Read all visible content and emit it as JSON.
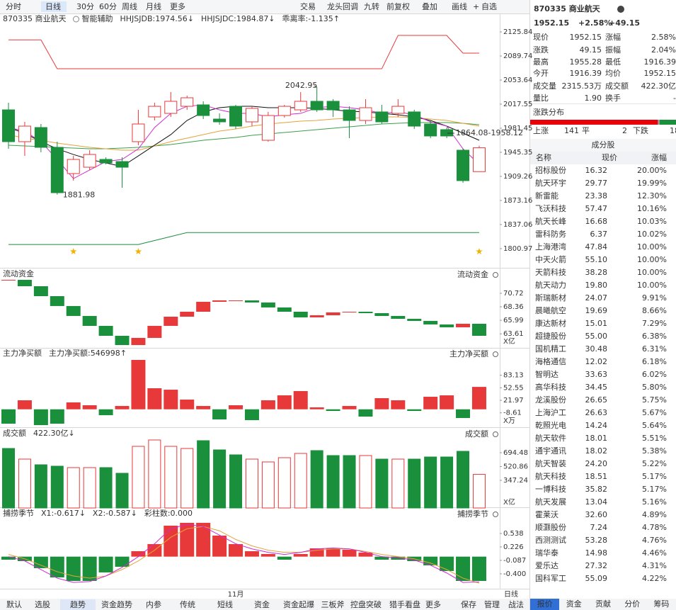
{
  "toolbar": {
    "left": [
      "分时",
      "日线",
      "30分",
      "60分",
      "周线",
      "月线",
      "更多"
    ],
    "active": 1,
    "right": [
      "交易",
      "龙头回调",
      "九转",
      "前复权",
      "叠加",
      "画线",
      "自选"
    ]
  },
  "chart_data": [
    {
      "type": "candlestick",
      "title": "870335 商业航天",
      "subtitle": "智能辅助",
      "legend": [
        {
          "text": "HHJSJDB:1974.56↓",
          "color": "#e6a23c"
        },
        {
          "text": "HHJSJDC:1984.87↓",
          "color": "#e8393a"
        },
        {
          "text": "乖离率:-1.135↑",
          "color": "#d4a000"
        }
      ],
      "open": [
        2009.0,
        1961.3,
        1982.5,
        1952.8,
        1913.5,
        1923.0,
        1934.7,
        1931.5,
        1961.3,
        1998.4,
        2003.7,
        2014.3,
        2016.5,
        1995.2,
        2014.3,
        1991.0,
        1963.4,
        2000.5,
        2009.0,
        2021.8,
        2021.8,
        2009.0,
        1993.1,
        2005.9,
        2003.7,
        2005.9,
        1987.8,
        1979.3,
        1948.5,
        1916.39
      ],
      "high": [
        2019.7,
        1991.0,
        1987.8,
        1961.3,
        1940.0,
        1948.5,
        1937.9,
        1937.9,
        2009.0,
        2019.7,
        2035.6,
        2030.3,
        2021.8,
        2003.7,
        2016.5,
        2014.3,
        2005.9,
        2016.5,
        2035.6,
        2042.95,
        2025.0,
        2014.3,
        2025.0,
        2016.5,
        2025.0,
        2009.0,
        1993.1,
        1982.5,
        1951.0,
        1955.28
      ],
      "low": [
        1950.6,
        1940.0,
        1945.3,
        1881.98,
        1902.9,
        1918.8,
        1927.3,
        1892.2,
        1956.0,
        1993.1,
        1998.4,
        2009.0,
        1995.2,
        1986.7,
        1980.4,
        1984.6,
        1961.3,
        1997.4,
        2005.9,
        2005.9,
        1998.4,
        1966.6,
        1987.8,
        1987.8,
        1998.4,
        1980.4,
        1966.6,
        1966.6,
        1899.7,
        1916.39
      ],
      "close": [
        1961.3,
        1984.6,
        1952.8,
        1884.8,
        1934.7,
        1942.1,
        1929.4,
        1923.0,
        1987.8,
        2014.3,
        2021.8,
        2027.1,
        2000.5,
        1991.0,
        1984.6,
        2011.2,
        2000.5,
        2014.3,
        2021.8,
        2009.0,
        2009.0,
        1993.1,
        2012.2,
        1991.0,
        2014.3,
        1984.6,
        1969.8,
        1969.8,
        1902.9,
        1952.15
      ],
      "lines": [
        {
          "color": "#e8393a",
          "values": [
            2113.9,
            2113.9,
            2113.9,
            2070.6,
            2070.6,
            2070.6,
            2070.6,
            2070.6,
            2070.6,
            2070.6,
            2070.6,
            2070.6,
            2070.6,
            2070.6,
            2070.6,
            2070.6,
            2070.6,
            2070.6,
            2070.6,
            2070.6,
            2070.6,
            2070.6,
            2070.6,
            2070.6,
            2120.5,
            2120.5,
            2120.5,
            2120.5,
            2094.0,
            2094.0
          ]
        },
        {
          "color": "#1a8f3c",
          "values": [
            1807.1,
            1807.1,
            1807.1,
            1807.1,
            1807.1,
            1807.1,
            1807.1,
            1807.1,
            1807.1,
            1813.1,
            1819.1,
            1825.1,
            1825.1,
            1825.1,
            1825.1,
            1825.1,
            1825.1,
            1825.1,
            1825.1,
            1825.1,
            1825.1,
            1825.1,
            1825.1,
            1825.1,
            1825.1,
            1825.1,
            1825.1,
            1825.1,
            1825.1,
            1825.1
          ]
        },
        {
          "color": "#3aa04a",
          "values": [
            1956.0,
            1954.9,
            1953.9,
            1952.8,
            1951.7,
            1950.6,
            1950.6,
            1951.7,
            1952.8,
            1954.9,
            1957.0,
            1960.2,
            1963.4,
            1965.5,
            1967.6,
            1970.8,
            1972.9,
            1975.1,
            1977.2,
            1979.3,
            1981.4,
            1983.6,
            1985.7,
            1987.8,
            1988.9,
            1989.9,
            1989.9,
            1989.9,
            1988.9,
            1986.7
          ]
        },
        {
          "color": "#e6a23c",
          "values": [
            1971.9,
            1966.6,
            1963.4,
            1959.1,
            1956.0,
            1952.8,
            1950.6,
            1948.5,
            1948.5,
            1954.9,
            1961.3,
            1966.6,
            1971.9,
            1977.2,
            1980.4,
            1984.6,
            1987.8,
            1989.9,
            1992.1,
            1993.1,
            1995.2,
            1996.3,
            1997.4,
            1998.4,
            1998.4,
            1997.4,
            1995.2,
            1993.1,
            1988.9,
            1984.6
          ]
        },
        {
          "color": "#111111",
          "values": [
            1982.5,
            1974.0,
            1961.3,
            1950.6,
            1942.1,
            1934.7,
            1929.4,
            1924.1,
            1940.0,
            1956.0,
            1971.9,
            1993.1,
            2005.9,
            2012.2,
            2014.3,
            2014.3,
            2012.2,
            2012.2,
            2012.2,
            2011.2,
            2009.0,
            2006.9,
            2005.9,
            2003.7,
            2001.6,
            1998.4,
            1993.1,
            1984.6,
            1974.0,
            1963.4
          ]
        },
        {
          "color": "#d02cd0",
          "values": [
            1982.5,
            1977.2,
            1961.3,
            1934.7,
            1906.0,
            1918.8,
            1931.5,
            1934.7,
            1950.6,
            1982.5,
            2003.7,
            2014.3,
            2016.5,
            2009.0,
            2003.7,
            2003.7,
            1998.4,
            2001.6,
            2003.7,
            2012.2,
            2014.3,
            2012.2,
            2009.0,
            2003.7,
            2005.9,
            2001.6,
            1991.0,
            1984.6,
            1950.6,
            1927.3
          ]
        }
      ],
      "stars": [
        4,
        8,
        29
      ],
      "annotations": [
        "2042.95",
        "1881.98",
        "1864.08-1958.12"
      ],
      "ylim": [
        1778.6,
        2133.3
      ],
      "yticks": [
        2125.84,
        2089.74,
        2053.64,
        2017.55,
        1981.45,
        1945.35,
        1909.26,
        1873.16,
        1837.06,
        1800.97
      ],
      "up_color": "#e8393a",
      "down_color": "#1a8f3c"
    },
    {
      "type": "waterfall",
      "title": "流动资金",
      "title_right": "流动资金",
      "unit": "X亿",
      "values": [
        73.08,
        71.96,
        70.22,
        68.49,
        66.75,
        65.01,
        63.27,
        61.65,
        62.9,
        65.01,
        66.62,
        67.49,
        69.23,
        69.48,
        69.48,
        69.11,
        68.24,
        67.49,
        66.5,
        66.87,
        67.37,
        67.49,
        67.24,
        66.75,
        66.25,
        65.88,
        65.26,
        64.76,
        65.38,
        63.27
      ],
      "ylim": [
        61.28,
        73.45
      ],
      "yticks": [
        70.72,
        68.36,
        65.99,
        63.61
      ]
    },
    {
      "type": "bar",
      "title": "主力净买额",
      "legend": [
        {
          "text": "主力净买额:546998↑",
          "color": "#e8393a"
        }
      ],
      "title_right": "主力净买额",
      "unit": "X万",
      "values": [
        -35.1,
        22.0,
        -38.6,
        -35.1,
        16.8,
        9.9,
        -14.4,
        8.1,
        120.6,
        51.4,
        47.9,
        23.7,
        8.1,
        -24.7,
        9.9,
        -26.5,
        22.0,
        34.1,
        44.5,
        4.7,
        -4.0,
        8.1,
        -17.8,
        27.2,
        22.0,
        -4.0,
        30.6,
        34.1,
        -21.3,
        54.7
      ],
      "ylim": [
        -42.0,
        125.8
      ],
      "yticks": [
        83.13,
        52.55,
        21.97,
        -8.61
      ]
    },
    {
      "type": "volume",
      "title": "成交额",
      "legend": [
        {
          "text": "422.30亿↓",
          "color": "#333333"
        }
      ],
      "title_right": "成交额",
      "unit": "X亿",
      "values": [
        747.6,
        614.1,
        542.9,
        525.1,
        507.3,
        507.3,
        507.3,
        436.1,
        774.3,
        854.4,
        774.3,
        747.6,
        845.5,
        729.8,
        667.5,
        614.1,
        578.5,
        631.9,
        685.3,
        720.9,
        658.6,
        658.6,
        658.6,
        614.1,
        614.1,
        614.1,
        640.8,
        640.8,
        712.0,
        422.3
      ],
      "ylim": [
        0,
        979
      ],
      "yticks": [
        694.48,
        520.86,
        347.24
      ]
    },
    {
      "type": "bar",
      "title": "捕捞季节",
      "legend": [
        {
          "text": "X1:-0.617↓",
          "color": "#d4a000"
        },
        {
          "text": "X2:-0.587↓",
          "color": "#d02cd0"
        },
        {
          "text": "彩柱数:0.000",
          "color": "#1a8f3c"
        }
      ],
      "title_right": "捕捞季节",
      "values": [
        -0.071,
        -0.104,
        -0.268,
        -0.483,
        -0.565,
        -0.565,
        -0.367,
        -0.236,
        0.127,
        0.292,
        0.72,
        0.786,
        0.786,
        0.489,
        0.292,
        0.127,
        0.061,
        -0.071,
        0.061,
        0.193,
        0.193,
        0.16,
        0.094,
        -0.071,
        -0.071,
        -0.104,
        -0.203,
        -0.334,
        -0.565,
        -0.565
      ],
      "lines": [
        {
          "color": "#e6a23c",
          "values": [
            0.05,
            -0.05,
            -0.2,
            -0.35,
            -0.45,
            -0.5,
            -0.45,
            -0.3,
            -0.1,
            0.15,
            0.45,
            0.65,
            0.7,
            0.6,
            0.4,
            0.25,
            0.15,
            0.1,
            0.1,
            0.15,
            0.18,
            0.18,
            0.12,
            0.05,
            0,
            -0.05,
            -0.15,
            -0.3,
            -0.5,
            -0.617
          ]
        },
        {
          "color": "#d02cd0",
          "values": [
            0.0,
            -0.1,
            -0.3,
            -0.5,
            -0.6,
            -0.58,
            -0.45,
            -0.25,
            0.0,
            0.3,
            0.65,
            0.75,
            0.7,
            0.5,
            0.3,
            0.18,
            0.1,
            0.05,
            0.1,
            0.18,
            0.2,
            0.18,
            0.1,
            0.0,
            -0.03,
            -0.08,
            -0.2,
            -0.38,
            -0.6,
            -0.587
          ]
        }
      ],
      "ylim": [
        -0.73,
        0.884
      ],
      "yticks": [
        0.538,
        0.226,
        -0.087,
        {
          "value": -0.4,
          "label": "-0.400"
        }
      ],
      "categories": [
        null,
        null,
        null,
        null,
        null,
        null,
        null,
        null,
        null,
        null,
        null,
        null,
        null,
        null,
        "11月",
        null,
        null,
        null,
        null,
        null,
        null,
        null,
        null,
        null,
        null,
        null,
        null,
        null,
        null,
        null
      ],
      "x_right_label": "日线"
    }
  ],
  "bottom_tabs": {
    "items": [
      "默认",
      "选股",
      "趋势",
      "资金趋势",
      "内参",
      "传统",
      "短线",
      "资金",
      "资金起爆",
      "三板斧",
      "控盘突破",
      "猎手看盘",
      "更多"
    ],
    "active": 2,
    "right": [
      "保存",
      "管理",
      "战法"
    ]
  },
  "quote": {
    "header": {
      "code_name": "870335 商业航天",
      "price": "1952.15",
      "change_pct": "+2.58%",
      "change": "+49.15"
    },
    "rows": [
      [
        {
          "label": "现价",
          "value": "1952.15",
          "red": true
        },
        {
          "label": "涨幅",
          "value": "2.58%",
          "red": true
        }
      ],
      [
        {
          "label": "涨跌",
          "value": "49.15",
          "red": true
        },
        {
          "label": "振幅",
          "value": "2.04%",
          "red": false
        }
      ],
      [
        {
          "label": "最高",
          "value": "1955.28",
          "red": true
        },
        {
          "label": "最低",
          "value": "1916.39",
          "red": true
        }
      ],
      [
        {
          "label": "今开",
          "value": "1916.39",
          "red": true
        },
        {
          "label": "均价",
          "value": "1952.15",
          "red": true
        }
      ],
      [
        {
          "label": "成交量",
          "value": "2315.53万",
          "red": false
        },
        {
          "label": "成交额",
          "value": "422.30亿",
          "red": false
        }
      ],
      [
        {
          "label": "量比",
          "value": "1.90",
          "red": false
        },
        {
          "label": "换手",
          "value": "-",
          "red": false
        }
      ]
    ],
    "distribution": {
      "title": "涨跌分布",
      "up_label": "上涨",
      "up": 141,
      "flat_label": "平",
      "flat": 2,
      "down_label": "下跌",
      "down": 18
    },
    "constituents": {
      "title": "成分股",
      "columns": [
        "名称",
        "现价",
        "涨幅"
      ],
      "rows": [
        {
          "name": "招标股份",
          "price": "16.32",
          "change": "20.00%"
        },
        {
          "name": "航天环宇",
          "price": "29.77",
          "change": "19.99%"
        },
        {
          "name": "新雷能",
          "price": "23.38",
          "change": "12.30%"
        },
        {
          "name": "飞沃科技",
          "price": "57.47",
          "change": "10.16%"
        },
        {
          "name": "航天长峰",
          "price": "16.68",
          "change": "10.03%"
        },
        {
          "name": "雷科防务",
          "price": "6.37",
          "change": "10.02%"
        },
        {
          "name": "上海港湾",
          "price": "47.84",
          "change": "10.00%",
          "color": "#2a6fd6"
        },
        {
          "name": "中天火箭",
          "price": "55.10",
          "change": "10.00%"
        },
        {
          "name": "天箭科技",
          "price": "38.28",
          "change": "10.00%"
        },
        {
          "name": "航天动力",
          "price": "19.80",
          "change": "10.00%"
        },
        {
          "name": "斯瑞新材",
          "price": "24.07",
          "change": "9.91%"
        },
        {
          "name": "晨曦航空",
          "price": "19.69",
          "change": "8.66%"
        },
        {
          "name": "康达新材",
          "price": "15.01",
          "change": "7.29%"
        },
        {
          "name": "超捷股份",
          "price": "55.00",
          "change": "6.38%"
        },
        {
          "name": "国机精工",
          "price": "30.48",
          "change": "6.31%"
        },
        {
          "name": "海格通信",
          "price": "12.02",
          "change": "6.18%"
        },
        {
          "name": "智明达",
          "price": "33.63",
          "change": "6.02%"
        },
        {
          "name": "高华科技",
          "price": "34.45",
          "change": "5.80%"
        },
        {
          "name": "龙溪股份",
          "price": "26.65",
          "change": "5.75%",
          "color": "#2a6fd6"
        },
        {
          "name": "上海沪工",
          "price": "26.63",
          "change": "5.67%"
        },
        {
          "name": "乾照光电",
          "price": "14.24",
          "change": "5.64%"
        },
        {
          "name": "航天软件",
          "price": "18.01",
          "change": "5.51%"
        },
        {
          "name": "通宇通讯",
          "price": "18.02",
          "change": "5.38%"
        },
        {
          "name": "航天智装",
          "price": "24.20",
          "change": "5.22%"
        },
        {
          "name": "航天科技",
          "price": "18.51",
          "change": "5.17%"
        },
        {
          "name": "一博科技",
          "price": "35.82",
          "change": "5.17%"
        },
        {
          "name": "航天发展",
          "price": "13.04",
          "change": "5.16%",
          "color": "#2a6fd6"
        },
        {
          "name": "霍莱沃",
          "price": "32.60",
          "change": "4.89%"
        },
        {
          "name": "顺灏股份",
          "price": "7.24",
          "change": "4.78%"
        },
        {
          "name": "西测测试",
          "price": "53.28",
          "change": "4.76%",
          "color": "#d0309a"
        },
        {
          "name": "瑞华泰",
          "price": "14.98",
          "change": "4.46%",
          "color": "#d0309a"
        },
        {
          "name": "爱乐达",
          "price": "27.32",
          "change": "4.31%"
        },
        {
          "name": "国科军工",
          "price": "55.09",
          "change": "4.22%"
        }
      ]
    },
    "tabs": [
      "报价",
      "资金",
      "贡献",
      "分价",
      "筹码"
    ],
    "active_tab": 0
  }
}
